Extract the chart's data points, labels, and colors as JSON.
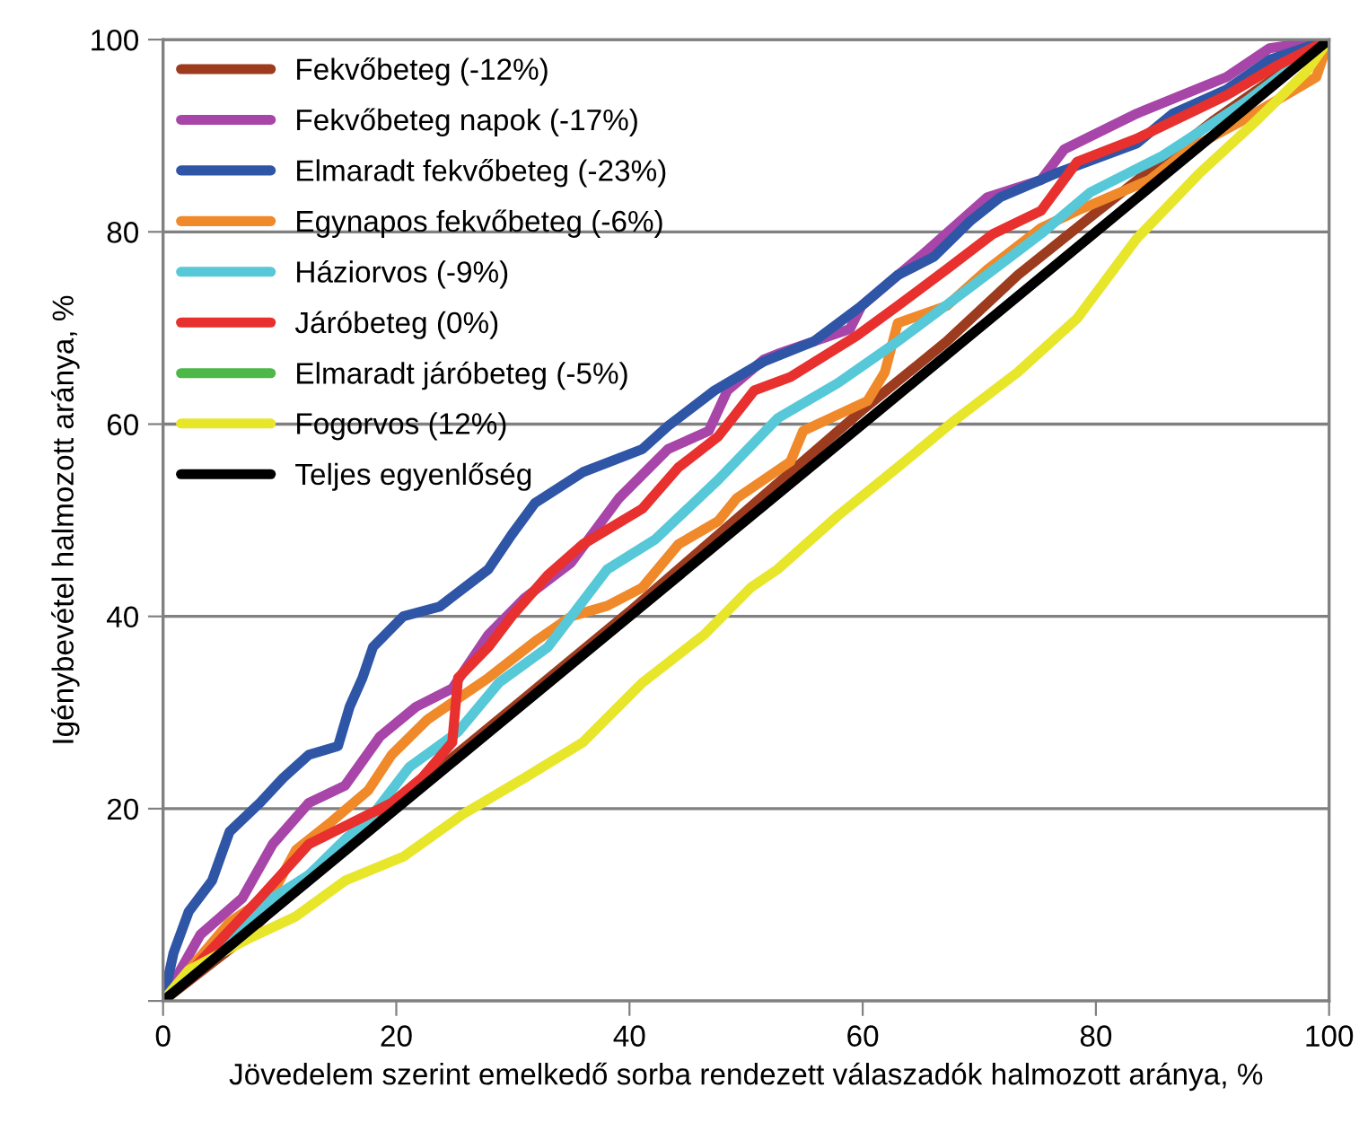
{
  "chart_data": {
    "type": "line",
    "xlabel": "Jövedelem szerint emelkedő sorba rendezett válaszadók halmozott aránya, %",
    "ylabel": "Igénybevétel halmozott aránya, %",
    "xlim": [
      0,
      100
    ],
    "ylim": [
      0,
      100
    ],
    "xticks": [
      0,
      20,
      40,
      60,
      80,
      100
    ],
    "yticks": [
      {
        "value": 0,
        "label": null
      },
      20,
      40,
      60,
      80,
      100
    ],
    "grid": "y",
    "legend": "top left",
    "marker": "none",
    "line_style": "solid",
    "series": [
      {
        "name": "Fekvőbeteg (-12%)",
        "color": "#9c3b1e",
        "x": [
          0,
          6.8,
          11.4,
          20,
          30,
          40,
          50,
          60,
          67.2,
          73.3,
          80,
          90,
          100
        ],
        "values": [
          0,
          6.4,
          12,
          20.5,
          30.5,
          40.5,
          51,
          61.5,
          68.6,
          75.5,
          82,
          91.5,
          100
        ]
      },
      {
        "name": "Fekvőbeteg napok (-17%)",
        "color": "#a845a8",
        "x": [
          0,
          3.2,
          6.8,
          9.4,
          12.5,
          15.6,
          18.6,
          21.7,
          24.8,
          27.9,
          31,
          35,
          39.1,
          43.3,
          46.8,
          48.4,
          51.5,
          52.7,
          58.9,
          59.9,
          65,
          70.7,
          75.3,
          77.3,
          83.5,
          91.2,
          94.9,
          100
        ],
        "values": [
          0,
          6.9,
          10.7,
          16.3,
          20.6,
          22.4,
          27.5,
          30.6,
          32.5,
          38.1,
          41.9,
          45.6,
          52.3,
          57.4,
          59.3,
          63.5,
          66.7,
          67.3,
          69.9,
          72.3,
          77.5,
          83.6,
          85.4,
          88.6,
          92.3,
          96.1,
          99.1,
          100
        ]
      },
      {
        "name": "Elmaradt fekvőbeteg (-23%)",
        "color": "#2f56a6",
        "x": [
          0,
          0.9,
          2.2,
          4.2,
          5.7,
          8.3,
          10.3,
          12.5,
          15,
          16,
          17.1,
          18,
          20.6,
          23.7,
          27.9,
          29.9,
          31.9,
          36,
          41.1,
          43.3,
          47.3,
          51.5,
          55.8,
          59.9,
          63,
          66.1,
          69.2,
          71.8,
          76.4,
          83.5,
          86.6,
          91.2,
          94.9,
          100
        ],
        "values": [
          0,
          5,
          9.3,
          12.5,
          17.6,
          20.6,
          23.2,
          25.6,
          26.5,
          30.6,
          33.6,
          36.8,
          40,
          41,
          44.9,
          48.5,
          51.8,
          55,
          57.4,
          59.8,
          63.5,
          66.5,
          68.6,
          72.3,
          75.5,
          77.4,
          81.1,
          83.6,
          86,
          89.2,
          92.3,
          94.8,
          97.9,
          100
        ]
      },
      {
        "name": "Egynapos fekvőbeteg (-6%)",
        "color": "#f0892a",
        "x": [
          0,
          2.2,
          5.7,
          9.4,
          11.4,
          14.5,
          17.6,
          19.6,
          22.7,
          27.9,
          31.9,
          35,
          38.1,
          41.1,
          44.2,
          47.6,
          49.2,
          53.8,
          54.9,
          60.4,
          61.9,
          63,
          67.2,
          70.7,
          75.3,
          78.4,
          84.6,
          88,
          92.6,
          98.9,
          100
        ],
        "values": [
          0,
          3.2,
          8.2,
          11.2,
          15.7,
          18.7,
          21.9,
          25.6,
          29.3,
          33.6,
          37.4,
          40,
          41.1,
          43,
          47.5,
          49.9,
          52.3,
          56.1,
          59.3,
          62.4,
          65.4,
          70.5,
          72.3,
          76.1,
          80.4,
          82.2,
          85.4,
          88.6,
          91.6,
          96.1,
          100
        ]
      },
      {
        "name": "Háziorvos (-9%)",
        "color": "#56c8d8",
        "x": [
          0,
          9.4,
          12.5,
          15.6,
          18,
          21.1,
          25.3,
          28.8,
          33,
          38.1,
          42.2,
          47.6,
          52.7,
          57.9,
          63,
          69.2,
          75.3,
          79.5,
          85.7,
          92.8,
          100
        ],
        "values": [
          0,
          10.7,
          13.1,
          16.8,
          19.4,
          24.3,
          28,
          33.1,
          36.8,
          44.9,
          48,
          54.2,
          60.6,
          64.3,
          68.6,
          74.2,
          79.8,
          84.1,
          87.9,
          93.5,
          100
        ]
      },
      {
        "name": "Járóbeteg (0%)",
        "color": "#e8302e",
        "x": [
          0,
          8.3,
          12.5,
          19.6,
          22.2,
          24.8,
          25.3,
          27.9,
          29.9,
          33,
          36,
          41.1,
          44.2,
          47.6,
          50.7,
          53.8,
          59.5,
          63,
          67.2,
          71.2,
          75.3,
          78.4,
          83.5,
          91.2,
          95.4,
          100
        ],
        "values": [
          0,
          10.7,
          16.3,
          20.6,
          23.2,
          26.9,
          33.6,
          36.8,
          40,
          44.3,
          47.5,
          51.2,
          55.5,
          58.7,
          63.5,
          64.9,
          69.2,
          72.3,
          76.1,
          79.8,
          82.2,
          87.3,
          89.7,
          94.2,
          97.2,
          100
        ]
      },
      {
        "name": "Elmaradt járóbeteg (-5%)",
        "color": "#4cb848"
      },
      {
        "name": "Fogorvos (12%)",
        "color": "#e8e62a",
        "x": [
          0,
          2.2,
          7.2,
          11.4,
          15.6,
          20.6,
          25.7,
          31,
          36,
          41.1,
          46.4,
          50.4,
          52.7,
          57.9,
          63,
          68.1,
          73.3,
          78.4,
          83.5,
          88.8,
          93.8,
          98,
          100
        ],
        "values": [
          0,
          3.2,
          6.4,
          8.8,
          12.5,
          15,
          19.4,
          23.2,
          26.9,
          33.1,
          38.1,
          43,
          44.9,
          50.5,
          55.5,
          60.6,
          65.4,
          71,
          79.3,
          86,
          91.6,
          96.6,
          100
        ]
      },
      {
        "name": "Teljes egyenlőség",
        "color": "#000000",
        "x": [
          0,
          100
        ],
        "values": [
          0,
          100
        ]
      }
    ]
  }
}
